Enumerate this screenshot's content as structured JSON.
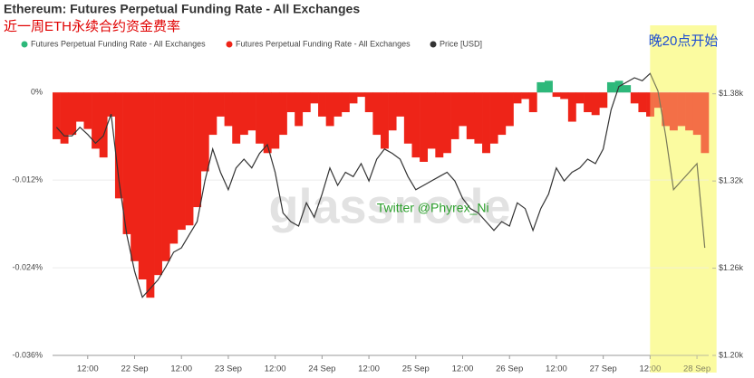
{
  "chart_data": {
    "type": "bar",
    "title": "Ethereum: Futures Perpetual Funding Rate - All Exchanges",
    "subtitle": "近一周ETH永续合约资金费率",
    "watermark": "glassnode",
    "annotations": [
      {
        "text": "Twitter @Phyrex_Ni",
        "x": 86,
        "y": -0.0159,
        "color": "#2ca02c"
      }
    ],
    "highlight": {
      "xlim": [
        156,
        173
      ],
      "label": "晚20点开始",
      "color": "#fbfba0",
      "label_color": "#1f4fd1"
    },
    "x": [
      4,
      6,
      8,
      10,
      12,
      14,
      16,
      18,
      20,
      22,
      24,
      26,
      28,
      30,
      32,
      34,
      36,
      38,
      40,
      42,
      44,
      46,
      48,
      50,
      52,
      54,
      56,
      58,
      60,
      62,
      64,
      66,
      68,
      70,
      72,
      74,
      76,
      78,
      80,
      82,
      84,
      86,
      88,
      90,
      92,
      94,
      96,
      98,
      100,
      102,
      104,
      106,
      108,
      110,
      112,
      114,
      116,
      118,
      120,
      122,
      124,
      126,
      128,
      130,
      132,
      134,
      136,
      138,
      140,
      142,
      144,
      146,
      148,
      150,
      152,
      154,
      156,
      158,
      160,
      162,
      164,
      166,
      168,
      170
    ],
    "xlim": [
      3,
      171
    ],
    "xticks": [
      {
        "value": 12,
        "label": "12:00"
      },
      {
        "value": 24,
        "label": "22 Sep"
      },
      {
        "value": 36,
        "label": "12:00"
      },
      {
        "value": 48,
        "label": "23 Sep"
      },
      {
        "value": 60,
        "label": "12:00"
      },
      {
        "value": 72,
        "label": "24 Sep"
      },
      {
        "value": 84,
        "label": "12:00"
      },
      {
        "value": 96,
        "label": "25 Sep"
      },
      {
        "value": 108,
        "label": "12:00"
      },
      {
        "value": 120,
        "label": "26 Sep"
      },
      {
        "value": 132,
        "label": "12:00"
      },
      {
        "value": 144,
        "label": "27 Sep"
      },
      {
        "value": 156,
        "label": "12:00"
      },
      {
        "value": 168,
        "label": "28 Sep"
      }
    ],
    "ylim": [
      -0.036,
      0.003
    ],
    "yticks": [
      {
        "value": 0,
        "label": "0%"
      },
      {
        "value": -0.012,
        "label": "-0.012%"
      },
      {
        "value": -0.024,
        "label": "-0.024%"
      },
      {
        "value": -0.036,
        "label": "-0.036%"
      }
    ],
    "y2lim": [
      1200,
      1396
    ],
    "y2ticks": [
      {
        "value": 1380,
        "label": "$1.38k"
      },
      {
        "value": 1320,
        "label": "$1.32k"
      },
      {
        "value": 1260,
        "label": "$1.26k"
      },
      {
        "value": 1200,
        "label": "$1.20k"
      }
    ],
    "grid": true,
    "series": [
      {
        "name": "Futures Perpetual Funding Rate - All Exchanges",
        "type": "bar",
        "color": "#2db87a",
        "values": [
          null,
          null,
          null,
          null,
          null,
          null,
          null,
          null,
          null,
          null,
          null,
          null,
          null,
          null,
          null,
          null,
          null,
          null,
          null,
          null,
          null,
          null,
          null,
          null,
          null,
          null,
          null,
          null,
          null,
          null,
          null,
          null,
          null,
          null,
          null,
          null,
          null,
          null,
          null,
          null,
          null,
          null,
          null,
          null,
          null,
          null,
          null,
          null,
          null,
          null,
          null,
          null,
          null,
          null,
          null,
          null,
          null,
          null,
          null,
          null,
          null,
          null,
          0.0014,
          0.0016,
          null,
          null,
          null,
          null,
          null,
          null,
          null,
          0.0014,
          0.0016,
          0.001,
          null,
          null,
          null,
          null,
          null,
          null,
          null,
          null,
          null,
          null
        ]
      },
      {
        "name": "Futures Perpetual Funding Rate - All Exchanges",
        "type": "bar",
        "color": "#ee2418",
        "values": [
          -0.0064,
          -0.007,
          -0.0058,
          -0.004,
          -0.005,
          -0.0077,
          -0.0089,
          -0.0033,
          -0.0145,
          -0.0194,
          -0.0231,
          -0.0256,
          -0.0281,
          -0.025,
          -0.0231,
          -0.0207,
          -0.0188,
          -0.0182,
          -0.0157,
          -0.0108,
          -0.0058,
          -0.0033,
          -0.0046,
          -0.007,
          -0.0058,
          -0.0052,
          -0.007,
          -0.0083,
          -0.0077,
          -0.0058,
          -0.0027,
          -0.0046,
          -0.0027,
          -0.0015,
          -0.0033,
          -0.0046,
          -0.0033,
          -0.0027,
          -0.0015,
          -0.0006,
          -0.0027,
          -0.0058,
          -0.0077,
          -0.0052,
          -0.0033,
          -0.007,
          -0.0089,
          -0.0095,
          -0.0077,
          -0.0089,
          -0.0083,
          -0.0064,
          -0.0046,
          -0.0064,
          -0.007,
          -0.0083,
          -0.007,
          -0.0058,
          -0.0046,
          -0.0015,
          -0.0009,
          -0.0027,
          null,
          null,
          -0.0006,
          -0.0009,
          -0.004,
          -0.0015,
          -0.0027,
          -0.0031,
          -0.0021,
          null,
          null,
          null,
          -0.0015,
          -0.0027,
          -0.0033,
          -0.0021,
          -0.0046,
          -0.0052,
          -0.0046,
          -0.0052,
          -0.0058,
          -0.0083
        ]
      },
      {
        "name": "Price [USD]",
        "type": "line",
        "axis": "y2",
        "color": "#333333",
        "values": [
          1357,
          1351,
          1351,
          1357,
          1352,
          1346,
          1351,
          1366,
          1320,
          1283,
          1258,
          1240,
          1246,
          1252,
          1261,
          1271,
          1274,
          1283,
          1292,
          1320,
          1342,
          1326,
          1314,
          1329,
          1335,
          1329,
          1339,
          1345,
          1326,
          1298,
          1292,
          1289,
          1305,
          1295,
          1311,
          1329,
          1317,
          1326,
          1323,
          1332,
          1320,
          1335,
          1342,
          1339,
          1335,
          1323,
          1314,
          1317,
          1320,
          1323,
          1326,
          1320,
          1308,
          1301,
          1298,
          1292,
          1286,
          1292,
          1289,
          1305,
          1301,
          1286,
          1301,
          1311,
          1329,
          1320,
          1326,
          1329,
          1335,
          1332,
          1342,
          1369,
          1385,
          1388,
          1391,
          1389,
          1394,
          1382,
          1351,
          1314,
          1320,
          1326,
          1332,
          1274
        ]
      }
    ]
  }
}
